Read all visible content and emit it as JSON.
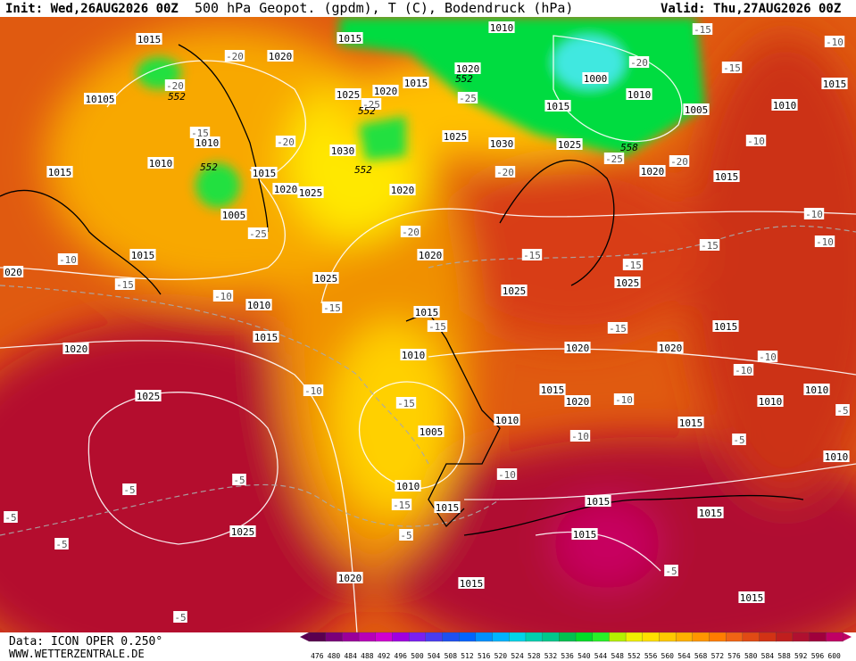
{
  "header": {
    "init": "Init: Wed,26AUG2026 00Z",
    "title": "500 hPa Geopot. (gpdm), T (C), Bodendruck (hPa)",
    "valid": "Valid: Thu,27AUG2026 00Z"
  },
  "footer": {
    "data": "Data: ICON OPER 0.250°",
    "site": "WWW.WETTERZENTRALE.DE"
  },
  "pressure_labels": [
    "1015",
    "1015",
    "1010",
    "1020",
    "1020",
    "1000",
    "1010",
    "1025",
    "1020",
    "1015",
    "1015",
    "1005",
    "1010",
    "1015",
    "10105",
    "1010",
    "1025",
    "1030",
    "1025",
    "1030",
    "1015",
    "1010",
    "1015",
    "1020",
    "1025",
    "1020",
    "1020",
    "1015",
    "1005",
    "1015",
    "1020",
    "1025",
    "1025",
    "1025",
    "1010",
    "1015",
    "1015",
    "020",
    "1020",
    "1015",
    "1020",
    "1020",
    "1010",
    "1015",
    "1020",
    "1025",
    "1010",
    "1010",
    "1015",
    "1010",
    "1005",
    "1010",
    "1010",
    "1015",
    "1015",
    "1015",
    "1015",
    "1025",
    "1020",
    "1015",
    "1015"
  ],
  "temperature_labels": [
    "-15",
    "-10",
    "-15",
    "-20",
    "-20",
    "-20",
    "-25",
    "-25",
    "-15",
    "-20",
    "-20",
    "-25",
    "-20",
    "-10",
    "-25",
    "-20",
    "-10",
    "-15",
    "-10",
    "-15",
    "-15",
    "-15",
    "-10",
    "-10",
    "-15",
    "-15",
    "-15",
    "-10",
    "-15",
    "-10",
    "-10",
    "-10",
    "-10",
    "-5",
    "-10",
    "-5",
    "-5",
    "-5",
    "-5",
    "-5",
    "-5",
    "-5",
    "-5",
    "-15"
  ],
  "geopotential_labels": [
    "552",
    "552",
    "552",
    "552",
    "552",
    "558"
  ],
  "colorbar": {
    "labels": [
      476,
      480,
      484,
      488,
      492,
      496,
      500,
      504,
      508,
      512,
      516,
      520,
      524,
      528,
      532,
      536,
      540,
      544,
      548,
      552,
      556,
      560,
      564,
      568,
      572,
      576,
      580,
      584,
      588,
      592,
      596,
      600
    ],
    "colors": [
      "#5a0050",
      "#7a007a",
      "#9a009a",
      "#b800b8",
      "#d000d0",
      "#a000e0",
      "#7a20f0",
      "#4a3cf0",
      "#1e50f0",
      "#0064ff",
      "#0090ff",
      "#00b4ff",
      "#00d4e8",
      "#00d0b0",
      "#00c88c",
      "#00c050",
      "#00dc28",
      "#28f028",
      "#b4f000",
      "#f0f000",
      "#ffe000",
      "#ffc800",
      "#ffb000",
      "#ff9600",
      "#ff7d00",
      "#f06414",
      "#e04b14",
      "#d23214",
      "#c01e1e",
      "#b01030",
      "#a0003c",
      "#c00064"
    ]
  }
}
